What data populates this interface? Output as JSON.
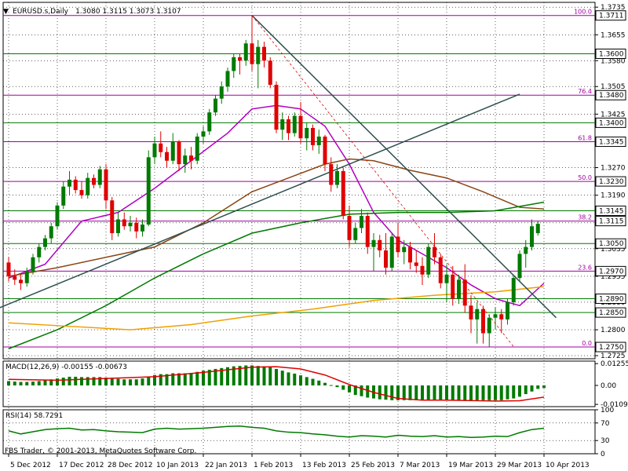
{
  "header": {
    "symbol": "EURUSD.s,Daily",
    "ohlc": "1.3080 1.3115 1.3073 1.3107",
    "indicator_triangle": "▼"
  },
  "footer": {
    "copyright": "FBS Trader, © 2001-2013, MetaQuotes Software Corp."
  },
  "colors": {
    "background": "#ffffff",
    "grid": "#000000",
    "bull": "#007a00",
    "bear": "#e00000",
    "ma_fast": "#b000c0",
    "ma_mid": "#8b4513",
    "ma_slow": "#007a00",
    "ma_long": "#f0a000",
    "trendline": "#2f4f4f",
    "fib": "#a000a0",
    "hline": "#007a00",
    "box": "#000000"
  },
  "chart_data": {
    "type": "candlestick",
    "price_axis": {
      "min": 1.2716,
      "max": 1.3749,
      "ticks": [
        "1.3735",
        "1.3655",
        "1.3580",
        "1.3505",
        "1.3425",
        "1.3345",
        "1.3270",
        "1.3190",
        "1.3110",
        "1.3035",
        "1.2955",
        "1.2880",
        "1.2800",
        "1.2725"
      ]
    },
    "date_labels": [
      {
        "label": "5 Dec 2012",
        "i": 0
      },
      {
        "label": "17 Dec 2012",
        "i": 8
      },
      {
        "label": "28 Dec 2012",
        "i": 16
      },
      {
        "label": "10 Jan 2013",
        "i": 24
      },
      {
        "label": "22 Jan 2013",
        "i": 32
      },
      {
        "label": "1 Feb 2013",
        "i": 40
      },
      {
        "label": "13 Feb 2013",
        "i": 48
      },
      {
        "label": "25 Feb 2013",
        "i": 56
      },
      {
        "label": "7 Mar 2013",
        "i": 64
      },
      {
        "label": "19 Mar 2013",
        "i": 72
      },
      {
        "label": "29 Mar 2013",
        "i": 80
      },
      {
        "label": "10 Apr 2013",
        "i": 88
      }
    ],
    "candles": [
      [
        1.2995,
        1.301,
        1.294,
        1.2955
      ],
      [
        1.2955,
        1.2975,
        1.293,
        1.2945
      ],
      [
        1.2945,
        1.296,
        1.2915,
        1.2935
      ],
      [
        1.2935,
        1.298,
        1.2925,
        1.297
      ],
      [
        1.297,
        1.302,
        1.296,
        1.301
      ],
      [
        1.301,
        1.305,
        1.2995,
        1.304
      ],
      [
        1.304,
        1.3075,
        1.303,
        1.3065
      ],
      [
        1.3065,
        1.311,
        1.305,
        1.31
      ],
      [
        1.31,
        1.317,
        1.309,
        1.316
      ],
      [
        1.316,
        1.323,
        1.315,
        1.3215
      ],
      [
        1.3215,
        1.326,
        1.319,
        1.3235
      ],
      [
        1.3235,
        1.3245,
        1.3195,
        1.3205
      ],
      [
        1.3205,
        1.323,
        1.318,
        1.319
      ],
      [
        1.319,
        1.3255,
        1.318,
        1.324
      ],
      [
        1.324,
        1.325,
        1.321,
        1.322
      ],
      [
        1.322,
        1.3275,
        1.321,
        1.3265
      ],
      [
        1.3265,
        1.328,
        1.315,
        1.3175
      ],
      [
        1.3175,
        1.3185,
        1.306,
        1.308
      ],
      [
        1.308,
        1.314,
        1.307,
        1.312
      ],
      [
        1.312,
        1.314,
        1.309,
        1.31
      ],
      [
        1.31,
        1.313,
        1.3085,
        1.311
      ],
      [
        1.311,
        1.3125,
        1.3065,
        1.3085
      ],
      [
        1.3085,
        1.312,
        1.307,
        1.3105
      ],
      [
        1.3105,
        1.332,
        1.31,
        1.33
      ],
      [
        1.33,
        1.336,
        1.328,
        1.334
      ],
      [
        1.334,
        1.3375,
        1.33,
        1.3315
      ],
      [
        1.3315,
        1.333,
        1.327,
        1.329
      ],
      [
        1.329,
        1.337,
        1.328,
        1.3345
      ],
      [
        1.3345,
        1.335,
        1.326,
        1.328
      ],
      [
        1.328,
        1.3325,
        1.3255,
        1.3305
      ],
      [
        1.3305,
        1.333,
        1.3265,
        1.329
      ],
      [
        1.329,
        1.337,
        1.328,
        1.336
      ],
      [
        1.336,
        1.339,
        1.334,
        1.3375
      ],
      [
        1.3375,
        1.344,
        1.3365,
        1.343
      ],
      [
        1.343,
        1.348,
        1.342,
        1.347
      ],
      [
        1.347,
        1.352,
        1.3455,
        1.3505
      ],
      [
        1.3505,
        1.356,
        1.349,
        1.355
      ],
      [
        1.355,
        1.36,
        1.353,
        1.359
      ],
      [
        1.359,
        1.36,
        1.354,
        1.358
      ],
      [
        1.358,
        1.364,
        1.3565,
        1.363
      ],
      [
        1.363,
        1.3711,
        1.355,
        1.357
      ],
      [
        1.357,
        1.364,
        1.35,
        1.362
      ],
      [
        1.362,
        1.3635,
        1.356,
        1.358
      ],
      [
        1.358,
        1.359,
        1.35,
        1.351
      ],
      [
        1.351,
        1.352,
        1.337,
        1.338
      ],
      [
        1.338,
        1.343,
        1.335,
        1.341
      ],
      [
        1.341,
        1.342,
        1.335,
        1.337
      ],
      [
        1.337,
        1.343,
        1.336,
        1.342
      ],
      [
        1.342,
        1.346,
        1.334,
        1.3355
      ],
      [
        1.3355,
        1.34,
        1.332,
        1.3385
      ],
      [
        1.3385,
        1.3395,
        1.332,
        1.3335
      ],
      [
        1.3335,
        1.338,
        1.331,
        1.336
      ],
      [
        1.336,
        1.3365,
        1.326,
        1.328
      ],
      [
        1.328,
        1.33,
        1.32,
        1.322
      ],
      [
        1.322,
        1.328,
        1.321,
        1.326
      ],
      [
        1.326,
        1.327,
        1.312,
        1.313
      ],
      [
        1.313,
        1.316,
        1.304,
        1.306
      ],
      [
        1.306,
        1.311,
        1.305,
        1.3095
      ],
      [
        1.3095,
        1.315,
        1.308,
        1.313
      ],
      [
        1.313,
        1.314,
        1.302,
        1.304
      ],
      [
        1.304,
        1.308,
        1.297,
        1.306
      ],
      [
        1.306,
        1.3075,
        1.301,
        1.303
      ],
      [
        1.303,
        1.308,
        1.296,
        1.298
      ],
      [
        1.298,
        1.308,
        1.297,
        1.307
      ],
      [
        1.307,
        1.311,
        1.301,
        1.3025
      ],
      [
        1.3025,
        1.306,
        1.299,
        1.304
      ],
      [
        1.304,
        1.3055,
        1.2975,
        1.2995
      ],
      [
        1.2995,
        1.303,
        1.2965,
        1.2985
      ],
      [
        1.2985,
        1.301,
        1.293,
        1.296
      ],
      [
        1.296,
        1.305,
        1.295,
        1.304
      ],
      [
        1.304,
        1.308,
        1.299,
        1.301
      ],
      [
        1.301,
        1.302,
        1.292,
        1.2935
      ],
      [
        1.2935,
        1.299,
        1.288,
        1.296
      ],
      [
        1.296,
        1.2985,
        1.287,
        1.289
      ],
      [
        1.289,
        1.296,
        1.2875,
        1.2945
      ],
      [
        1.2945,
        1.299,
        1.285,
        1.287
      ],
      [
        1.287,
        1.29,
        1.279,
        1.283
      ],
      [
        1.283,
        1.288,
        1.276,
        1.286
      ],
      [
        1.286,
        1.287,
        1.276,
        1.279
      ],
      [
        1.279,
        1.2845,
        1.2751,
        1.2835
      ],
      [
        1.2835,
        1.2865,
        1.28,
        1.2845
      ],
      [
        1.2845,
        1.286,
        1.279,
        1.283
      ],
      [
        1.283,
        1.289,
        1.2815,
        1.288
      ],
      [
        1.288,
        1.296,
        1.287,
        1.295
      ],
      [
        1.295,
        1.303,
        1.294,
        1.302
      ],
      [
        1.302,
        1.306,
        1.298,
        1.304
      ],
      [
        1.304,
        1.312,
        1.303,
        1.31
      ],
      [
        1.308,
        1.3115,
        1.3073,
        1.3107
      ]
    ],
    "moving_averages": [
      {
        "color_key": "ma_fast",
        "values": [
          [
            0,
            1.295
          ],
          [
            6,
            1.299
          ],
          [
            12,
            1.3115
          ],
          [
            18,
            1.314
          ],
          [
            24,
            1.321
          ],
          [
            30,
            1.329
          ],
          [
            36,
            1.337
          ],
          [
            40,
            1.344
          ],
          [
            44,
            1.345
          ],
          [
            48,
            1.344
          ],
          [
            52,
            1.339
          ],
          [
            56,
            1.328
          ],
          [
            60,
            1.314
          ],
          [
            64,
            1.306
          ],
          [
            68,
            1.302
          ],
          [
            72,
            1.298
          ],
          [
            76,
            1.293
          ],
          [
            80,
            1.289
          ],
          [
            84,
            1.287
          ],
          [
            88,
            1.2935
          ]
        ]
      },
      {
        "color_key": "ma_mid",
        "values": [
          [
            0,
            1.2955
          ],
          [
            8,
            1.298
          ],
          [
            16,
            1.301
          ],
          [
            24,
            1.304
          ],
          [
            32,
            1.311
          ],
          [
            40,
            1.32
          ],
          [
            46,
            1.324
          ],
          [
            52,
            1.328
          ],
          [
            56,
            1.3295
          ],
          [
            60,
            1.329
          ],
          [
            66,
            1.3262
          ],
          [
            72,
            1.324
          ],
          [
            78,
            1.32
          ],
          [
            84,
            1.3155
          ],
          [
            88,
            1.315
          ]
        ]
      },
      {
        "color_key": "ma_slow",
        "values": [
          [
            0,
            1.2745
          ],
          [
            8,
            1.28
          ],
          [
            16,
            1.287
          ],
          [
            24,
            1.295
          ],
          [
            32,
            1.302
          ],
          [
            40,
            1.308
          ],
          [
            48,
            1.311
          ],
          [
            56,
            1.3135
          ],
          [
            64,
            1.314
          ],
          [
            72,
            1.314
          ],
          [
            80,
            1.3145
          ],
          [
            88,
            1.317
          ]
        ]
      },
      {
        "color_key": "ma_long",
        "values": [
          [
            0,
            1.282
          ],
          [
            10,
            1.281
          ],
          [
            20,
            1.28
          ],
          [
            30,
            1.2815
          ],
          [
            40,
            1.284
          ],
          [
            50,
            1.286
          ],
          [
            60,
            1.2885
          ],
          [
            70,
            1.29
          ],
          [
            80,
            1.291
          ],
          [
            88,
            1.2925
          ]
        ]
      }
    ],
    "trendlines": [
      {
        "from": [
          -2,
          1.286
        ],
        "to": [
          84,
          1.3483
        ],
        "style": "solid"
      },
      {
        "from": [
          40,
          1.3711
        ],
        "to": [
          90,
          1.2835
        ],
        "style": "solid"
      },
      {
        "from": [
          40,
          1.3711
        ],
        "to": [
          83,
          1.2751
        ],
        "style": "dashed"
      }
    ],
    "price_boxes": [
      {
        "price": 1.3711,
        "label": "1.3711",
        "fib": "100.0"
      },
      {
        "price": 1.36,
        "label": "1.3600"
      },
      {
        "price": 1.348,
        "label": "1.3480",
        "fib": "76.4"
      },
      {
        "price": 1.34,
        "label": "1.3400"
      },
      {
        "price": 1.3345,
        "label": "1.3345",
        "fib": "61.8"
      },
      {
        "price": 1.323,
        "label": "1.3230",
        "fib": "50.0"
      },
      {
        "price": 1.3145,
        "label": "1.3145"
      },
      {
        "price": 1.3115,
        "label": "1.3115",
        "fib": "38.2"
      },
      {
        "price": 1.305,
        "label": "1.3050"
      },
      {
        "price": 1.297,
        "label": "1.2970",
        "fib": "23.6"
      },
      {
        "price": 1.289,
        "label": "1.2890"
      },
      {
        "price": 1.285,
        "label": "1.2850"
      },
      {
        "price": 1.275,
        "label": "1.2750",
        "fib": "0.0"
      }
    ],
    "macd": {
      "label": "MACD(12,26,9) -0.00155 -0.00673",
      "ticks": [
        "0.01255",
        "0.00",
        "-0.01091"
      ],
      "min": -0.0122,
      "max": 0.014,
      "histogram": [
        0.0025,
        0.0022,
        0.002,
        0.002,
        0.0022,
        0.0025,
        0.003,
        0.0035,
        0.004,
        0.0045,
        0.005,
        0.005,
        0.0048,
        0.0048,
        0.0048,
        0.0048,
        0.0045,
        0.004,
        0.0038,
        0.0035,
        0.0035,
        0.0035,
        0.004,
        0.005,
        0.006,
        0.0065,
        0.0065,
        0.007,
        0.007,
        0.007,
        0.0072,
        0.0078,
        0.0085,
        0.009,
        0.0095,
        0.01,
        0.0105,
        0.011,
        0.0112,
        0.0115,
        0.0115,
        0.0112,
        0.011,
        0.0105,
        0.0095,
        0.0085,
        0.0075,
        0.0068,
        0.0058,
        0.0048,
        0.0038,
        0.0028,
        0.0015,
        0.0002,
        -0.001,
        -0.0025,
        -0.004,
        -0.0055,
        -0.0062,
        -0.007,
        -0.0075,
        -0.008,
        -0.0082,
        -0.0085,
        -0.0085,
        -0.0085,
        -0.0085,
        -0.0085,
        -0.0085,
        -0.0085,
        -0.0085,
        -0.0085,
        -0.0085,
        -0.0085,
        -0.0085,
        -0.0085,
        -0.0085,
        -0.0085,
        -0.0085,
        -0.0085,
        -0.0085,
        -0.0085,
        -0.008,
        -0.0075,
        -0.0065,
        -0.005,
        -0.0035,
        -0.002,
        -0.0015
      ],
      "signal": [
        [
          0,
          0.0035
        ],
        [
          8,
          0.003
        ],
        [
          16,
          0.004
        ],
        [
          24,
          0.005
        ],
        [
          32,
          0.0075
        ],
        [
          40,
          0.0105
        ],
        [
          44,
          0.0108
        ],
        [
          48,
          0.0095
        ],
        [
          52,
          0.006
        ],
        [
          56,
          0.0005
        ],
        [
          60,
          -0.004
        ],
        [
          64,
          -0.0075
        ],
        [
          68,
          -0.0085
        ],
        [
          72,
          -0.0085
        ],
        [
          80,
          -0.009
        ],
        [
          84,
          -0.0088
        ],
        [
          88,
          -0.0067
        ]
      ]
    },
    "rsi": {
      "label": "RSI(14) 58.7291",
      "ticks": [
        "100",
        "70",
        "30",
        "0"
      ],
      "values": [
        [
          0,
          52
        ],
        [
          2,
          45
        ],
        [
          4,
          50
        ],
        [
          6,
          55
        ],
        [
          8,
          57
        ],
        [
          10,
          58
        ],
        [
          12,
          54
        ],
        [
          14,
          55
        ],
        [
          16,
          52
        ],
        [
          18,
          50
        ],
        [
          20,
          49
        ],
        [
          22,
          48
        ],
        [
          24,
          56
        ],
        [
          26,
          58
        ],
        [
          28,
          56
        ],
        [
          30,
          57
        ],
        [
          32,
          58
        ],
        [
          34,
          60
        ],
        [
          36,
          62
        ],
        [
          38,
          63
        ],
        [
          40,
          60
        ],
        [
          42,
          58
        ],
        [
          44,
          52
        ],
        [
          46,
          49
        ],
        [
          48,
          48
        ],
        [
          50,
          45
        ],
        [
          52,
          43
        ],
        [
          54,
          40
        ],
        [
          56,
          38
        ],
        [
          58,
          41
        ],
        [
          60,
          40
        ],
        [
          62,
          38
        ],
        [
          64,
          42
        ],
        [
          66,
          40
        ],
        [
          68,
          39
        ],
        [
          70,
          41
        ],
        [
          72,
          38
        ],
        [
          74,
          39
        ],
        [
          76,
          37
        ],
        [
          78,
          38
        ],
        [
          80,
          40
        ],
        [
          82,
          39
        ],
        [
          84,
          48
        ],
        [
          86,
          55
        ],
        [
          88,
          58
        ]
      ]
    }
  }
}
